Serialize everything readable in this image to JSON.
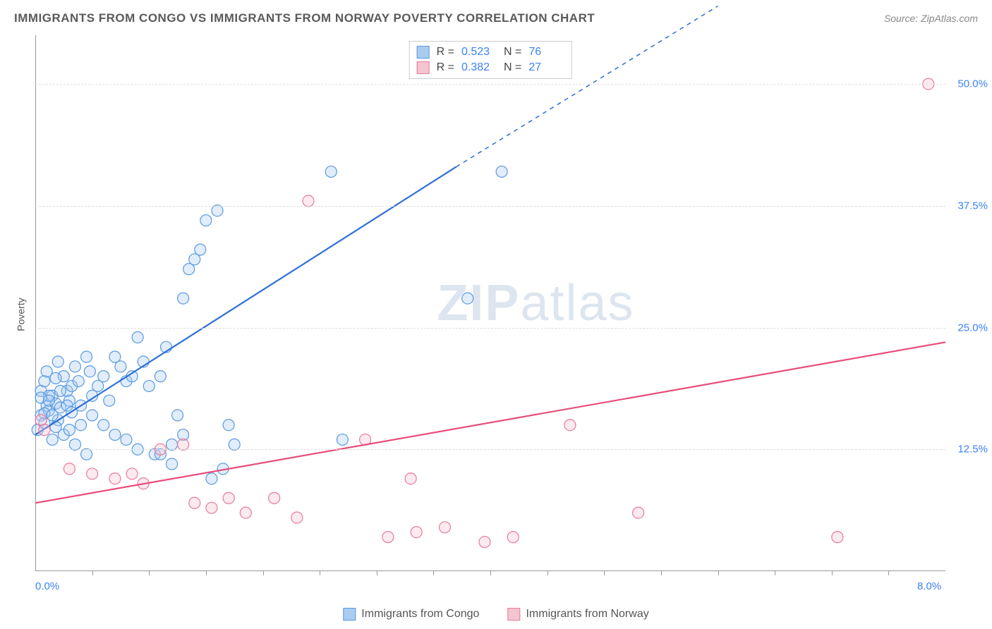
{
  "title": "IMMIGRANTS FROM CONGO VS IMMIGRANTS FROM NORWAY POVERTY CORRELATION CHART",
  "source_label": "Source: ZipAtlas.com",
  "y_axis_label": "Poverty",
  "watermark": {
    "zip": "ZIP",
    "atlas": "atlas"
  },
  "chart": {
    "type": "scatter",
    "xlim": [
      0.0,
      8.0
    ],
    "ylim": [
      0.0,
      55.0
    ],
    "x_ticks": [
      0.0,
      8.0
    ],
    "x_tick_labels": [
      "0.0%",
      "8.0%"
    ],
    "y_gridlines": [
      12.5,
      25.0,
      37.5,
      50.0
    ],
    "y_tick_labels": [
      "12.5%",
      "25.0%",
      "37.5%",
      "50.0%"
    ],
    "x_minor_ticks": [
      0.5,
      1.0,
      1.5,
      2.0,
      2.5,
      3.0,
      3.5,
      4.0,
      4.5,
      5.0,
      5.5,
      6.0,
      6.5,
      7.0,
      7.5
    ],
    "background_color": "#ffffff",
    "grid_color": "#dddddd",
    "axis_color": "#999999",
    "tick_label_color": "#3b82f6",
    "marker_radius": 8,
    "marker_fill_opacity": 0.35,
    "marker_stroke_width": 1.2,
    "line_width": 2.2,
    "series": [
      {
        "name": "Immigrants from Congo",
        "color_fill": "#a9ccf0",
        "color_stroke": "#5a9ae0",
        "line_color": "#2f6fd6",
        "r": "0.523",
        "n": "76",
        "trend": {
          "x1": 0.0,
          "y1": 14.0,
          "x2": 3.7,
          "y2": 41.5,
          "x2_dash": 6.0,
          "y2_dash": 58.0
        },
        "points": [
          [
            0.02,
            14.5
          ],
          [
            0.05,
            16.0
          ],
          [
            0.08,
            15.2
          ],
          [
            0.1,
            17.0
          ],
          [
            0.12,
            16.5
          ],
          [
            0.15,
            18.0
          ],
          [
            0.18,
            17.2
          ],
          [
            0.2,
            15.5
          ],
          [
            0.22,
            16.8
          ],
          [
            0.25,
            20.0
          ],
          [
            0.28,
            18.5
          ],
          [
            0.3,
            17.5
          ],
          [
            0.32,
            19.0
          ],
          [
            0.35,
            21.0
          ],
          [
            0.38,
            19.5
          ],
          [
            0.4,
            17.0
          ],
          [
            0.45,
            22.0
          ],
          [
            0.48,
            20.5
          ],
          [
            0.5,
            18.0
          ],
          [
            0.55,
            19.0
          ],
          [
            0.6,
            20.0
          ],
          [
            0.65,
            17.5
          ],
          [
            0.7,
            22.0
          ],
          [
            0.75,
            21.0
          ],
          [
            0.8,
            19.5
          ],
          [
            0.85,
            20.0
          ],
          [
            0.9,
            24.0
          ],
          [
            0.95,
            21.5
          ],
          [
            1.0,
            19.0
          ],
          [
            1.05,
            12.0
          ],
          [
            1.1,
            20.0
          ],
          [
            1.15,
            23.0
          ],
          [
            1.2,
            11.0
          ],
          [
            1.25,
            16.0
          ],
          [
            1.3,
            14.0
          ],
          [
            1.35,
            31.0
          ],
          [
            1.4,
            32.0
          ],
          [
            1.45,
            33.0
          ],
          [
            1.5,
            36.0
          ],
          [
            1.55,
            9.5
          ],
          [
            1.6,
            37.0
          ],
          [
            1.65,
            10.5
          ],
          [
            1.7,
            15.0
          ],
          [
            1.75,
            13.0
          ],
          [
            0.15,
            13.5
          ],
          [
            0.25,
            14.0
          ],
          [
            0.35,
            13.0
          ],
          [
            0.45,
            12.0
          ],
          [
            0.05,
            18.5
          ],
          [
            0.08,
            19.5
          ],
          [
            0.12,
            18.0
          ],
          [
            0.18,
            19.8
          ],
          [
            1.3,
            28.0
          ],
          [
            0.3,
            14.5
          ],
          [
            0.4,
            15.0
          ],
          [
            0.5,
            16.0
          ],
          [
            0.6,
            15.0
          ],
          [
            0.7,
            14.0
          ],
          [
            0.8,
            13.5
          ],
          [
            0.9,
            12.5
          ],
          [
            1.1,
            12.0
          ],
          [
            1.2,
            13.0
          ],
          [
            0.1,
            20.5
          ],
          [
            0.2,
            21.5
          ],
          [
            2.6,
            41.0
          ],
          [
            4.1,
            41.0
          ],
          [
            3.8,
            28.0
          ],
          [
            2.7,
            13.5
          ],
          [
            0.05,
            17.8
          ],
          [
            0.08,
            16.2
          ],
          [
            0.12,
            17.5
          ],
          [
            0.15,
            16.0
          ],
          [
            0.18,
            14.8
          ],
          [
            0.22,
            18.5
          ],
          [
            0.28,
            17.0
          ],
          [
            0.32,
            16.3
          ]
        ]
      },
      {
        "name": "Immigrants from Norway",
        "color_fill": "#f5c4d1",
        "color_stroke": "#e87a9a",
        "line_color": "#e84d78",
        "r": "0.382",
        "n": "27",
        "trend": {
          "x1": 0.0,
          "y1": 7.0,
          "x2": 8.0,
          "y2": 23.5
        },
        "points": [
          [
            0.05,
            15.5
          ],
          [
            0.08,
            14.5
          ],
          [
            0.3,
            10.5
          ],
          [
            0.5,
            10.0
          ],
          [
            0.7,
            9.5
          ],
          [
            0.85,
            10.0
          ],
          [
            1.1,
            12.5
          ],
          [
            1.3,
            13.0
          ],
          [
            1.4,
            7.0
          ],
          [
            1.55,
            6.5
          ],
          [
            1.7,
            7.5
          ],
          [
            1.85,
            6.0
          ],
          [
            2.1,
            7.5
          ],
          [
            2.3,
            5.5
          ],
          [
            2.4,
            38.0
          ],
          [
            2.9,
            13.5
          ],
          [
            3.1,
            3.5
          ],
          [
            3.3,
            9.5
          ],
          [
            3.35,
            4.0
          ],
          [
            3.6,
            4.5
          ],
          [
            3.95,
            3.0
          ],
          [
            4.2,
            3.5
          ],
          [
            4.7,
            15.0
          ],
          [
            5.3,
            6.0
          ],
          [
            7.05,
            3.5
          ],
          [
            7.85,
            50.0
          ],
          [
            0.95,
            9.0
          ]
        ]
      }
    ]
  },
  "stats_box": {
    "r_label": "R =",
    "n_label": "N ="
  },
  "legend": {
    "items": [
      {
        "label": "Immigrants from Congo"
      },
      {
        "label": "Immigrants from Norway"
      }
    ]
  }
}
